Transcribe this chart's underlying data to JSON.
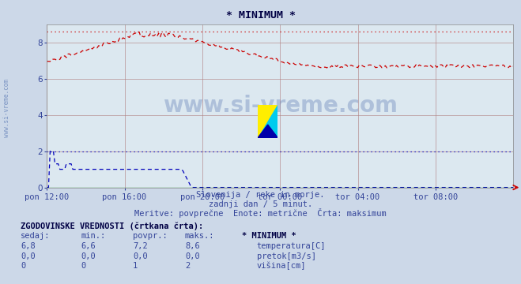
{
  "title": "* MINIMUM *",
  "bg_color": "#ccd8e8",
  "plot_bg_color": "#dce8f0",
  "grid_color": "#b08080",
  "xlabel_ticks": [
    "pon 12:00",
    "pon 16:00",
    "pon 20:00",
    "tor 00:00",
    "tor 04:00",
    "tor 08:00"
  ],
  "ylim": [
    0,
    9
  ],
  "yticks": [
    0,
    2,
    4,
    6,
    8
  ],
  "temp_color": "#cc0000",
  "flow_color": "#008800",
  "height_color": "#0000bb",
  "subtitle1": "Slovenija / reke in morje.",
  "subtitle2": "zadnji dan / 5 minut.",
  "subtitle3": "Meritve: povprečne  Enote: metrične  Črta: maksimum",
  "legend_title": "ZGODOVINSKE VREDNOSTI (črtkana črta):",
  "col_headers": [
    "sedaj:",
    "min.:",
    "povpr.:",
    "maks.:"
  ],
  "temp_row": [
    "6,8",
    "6,6",
    "7,2",
    "8,6"
  ],
  "flow_row": [
    "0,0",
    "0,0",
    "0,0",
    "0,0"
  ],
  "height_row": [
    "0",
    "0",
    "1",
    "2"
  ],
  "legend_label1": "temperatura[C]",
  "legend_label2": "pretok[m3/s]",
  "legend_label3": "višina[cm]",
  "legend_header": "* MINIMUM *",
  "watermark": "www.si-vreme.com"
}
